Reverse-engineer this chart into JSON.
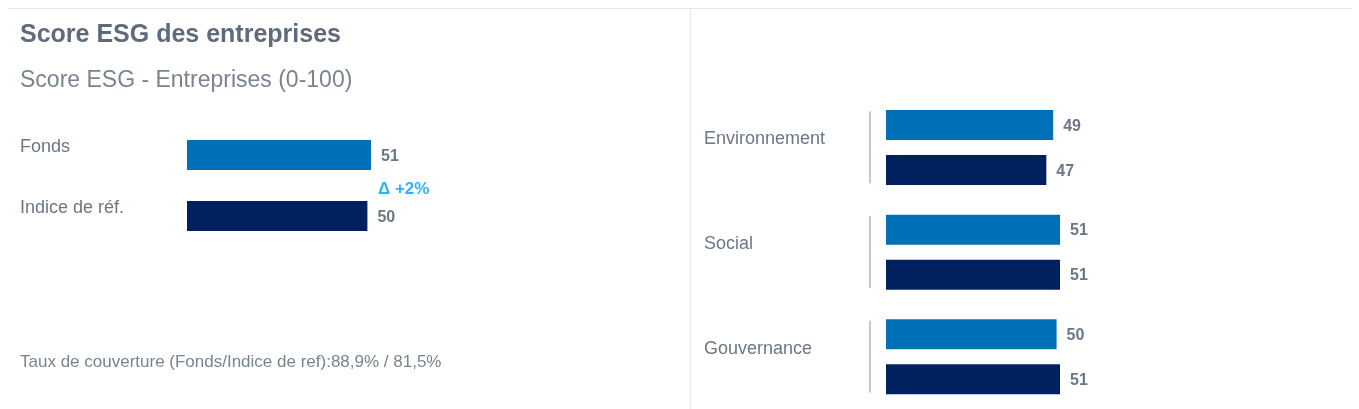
{
  "chart_data": [
    {
      "type": "bar",
      "orientation": "horizontal",
      "title": "Score ESG des entreprises",
      "subtitle": "Score ESG - Entreprises (0-100)",
      "categories": [
        "Fonds",
        "Indice de réf."
      ],
      "values": [
        51,
        50
      ],
      "colors": [
        "#0070b8",
        "#002060"
      ],
      "data_labels": true,
      "annotations": [
        "Δ +2%",
        "Taux de couverture (Fonds/Indice de ref):88,9% / 81,5%"
      ]
    },
    {
      "type": "bar",
      "orientation": "horizontal",
      "categories": [
        "Environnement",
        "Social",
        "Gouvernance"
      ],
      "series": [
        {
          "color": "#0070b8",
          "values": [
            49,
            51,
            50
          ]
        },
        {
          "color": "#002060",
          "values": [
            47,
            51,
            51
          ]
        }
      ],
      "data_labels": true
    }
  ]
}
